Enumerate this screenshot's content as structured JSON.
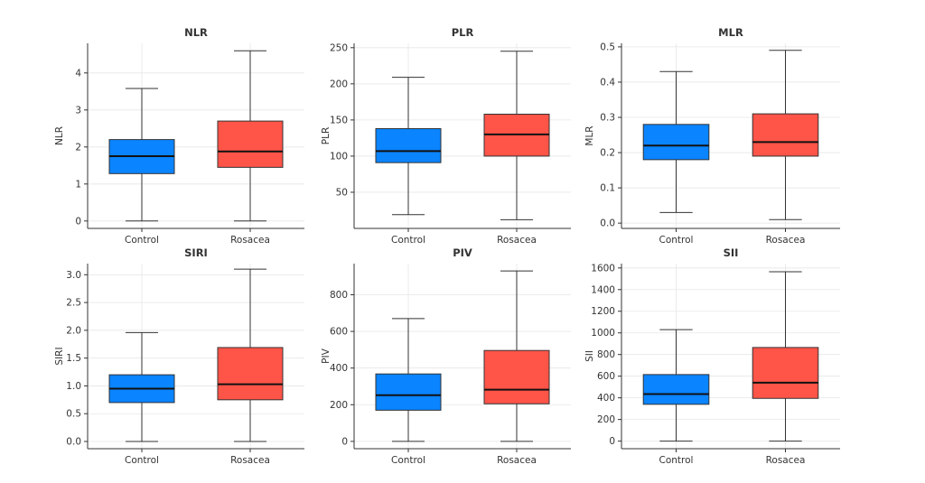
{
  "chart_data": [
    {
      "type": "boxplot",
      "title": "NLR",
      "ylabel": "NLR",
      "categories": [
        "Control",
        "Rosacea"
      ],
      "colors": [
        "#0a84ff",
        "#ff5448"
      ],
      "ylim": [
        -0.2,
        4.8
      ],
      "yticks": [
        0,
        1,
        2,
        3,
        4
      ],
      "ytick_labels": [
        "0",
        "1",
        "2",
        "3",
        "4"
      ],
      "boxes": [
        {
          "min": 0,
          "q1": 1.28,
          "median": 1.75,
          "q3": 2.2,
          "max": 3.58
        },
        {
          "min": 0,
          "q1": 1.45,
          "median": 1.88,
          "q3": 2.7,
          "max": 4.6
        }
      ]
    },
    {
      "type": "boxplot",
      "title": "PLR",
      "ylabel": "PLR",
      "categories": [
        "Control",
        "Rosacea"
      ],
      "colors": [
        "#0a84ff",
        "#ff5448"
      ],
      "ylim": [
        0,
        256
      ],
      "yticks": [
        50,
        100,
        150,
        200,
        250
      ],
      "ytick_labels": [
        "50",
        "100",
        "150",
        "200",
        "250"
      ],
      "boxes": [
        {
          "min": 19,
          "q1": 91,
          "median": 107,
          "q3": 138,
          "max": 209
        },
        {
          "min": 12,
          "q1": 100,
          "median": 130,
          "q3": 158,
          "max": 245
        }
      ]
    },
    {
      "type": "boxplot",
      "title": "MLR",
      "ylabel": "MLR",
      "categories": [
        "Control",
        "Rosacea"
      ],
      "colors": [
        "#0a84ff",
        "#ff5448"
      ],
      "ylim": [
        -0.015,
        0.51
      ],
      "yticks": [
        0.0,
        0.1,
        0.2,
        0.3,
        0.4,
        0.5
      ],
      "ytick_labels": [
        "0.0",
        "0.1",
        "0.2",
        "0.3",
        "0.4",
        "0.5"
      ],
      "boxes": [
        {
          "min": 0.03,
          "q1": 0.18,
          "median": 0.22,
          "q3": 0.28,
          "max": 0.43
        },
        {
          "min": 0.01,
          "q1": 0.19,
          "median": 0.23,
          "q3": 0.31,
          "max": 0.49
        }
      ]
    },
    {
      "type": "boxplot",
      "title": "SIRI",
      "ylabel": "SIRI",
      "categories": [
        "Control",
        "Rosacea"
      ],
      "colors": [
        "#0a84ff",
        "#ff5448"
      ],
      "ylim": [
        -0.13,
        3.2
      ],
      "yticks": [
        0.0,
        0.5,
        1.0,
        1.5,
        2.0,
        2.5,
        3.0
      ],
      "ytick_labels": [
        "0.0",
        "0.5",
        "1.0",
        "1.5",
        "2.0",
        "2.5",
        "3.0"
      ],
      "boxes": [
        {
          "min": 0,
          "q1": 0.7,
          "median": 0.95,
          "q3": 1.2,
          "max": 1.96
        },
        {
          "min": 0,
          "q1": 0.75,
          "median": 1.03,
          "q3": 1.69,
          "max": 3.1
        }
      ]
    },
    {
      "type": "boxplot",
      "title": "PIV",
      "ylabel": "PIV",
      "categories": [
        "Control",
        "Rosacea"
      ],
      "colors": [
        "#0a84ff",
        "#ff5448"
      ],
      "ylim": [
        -40,
        970
      ],
      "yticks": [
        0,
        200,
        400,
        600,
        800
      ],
      "ytick_labels": [
        "0",
        "200",
        "400",
        "600",
        "800"
      ],
      "boxes": [
        {
          "min": 0,
          "q1": 170,
          "median": 252,
          "q3": 368,
          "max": 670
        },
        {
          "min": 0,
          "q1": 205,
          "median": 282,
          "q3": 496,
          "max": 930
        }
      ]
    },
    {
      "type": "boxplot",
      "title": "SII",
      "ylabel": "SII",
      "categories": [
        "Control",
        "Rosacea"
      ],
      "colors": [
        "#0a84ff",
        "#ff5448"
      ],
      "ylim": [
        -70,
        1640
      ],
      "yticks": [
        0,
        200,
        400,
        600,
        800,
        1000,
        1200,
        1400,
        1600
      ],
      "ytick_labels": [
        "0",
        "200",
        "400",
        "600",
        "800",
        "1000",
        "1200",
        "1400",
        "1600"
      ],
      "boxes": [
        {
          "min": 0,
          "q1": 340,
          "median": 435,
          "q3": 615,
          "max": 1030
        },
        {
          "min": 0,
          "q1": 395,
          "median": 540,
          "q3": 865,
          "max": 1565
        }
      ]
    }
  ]
}
